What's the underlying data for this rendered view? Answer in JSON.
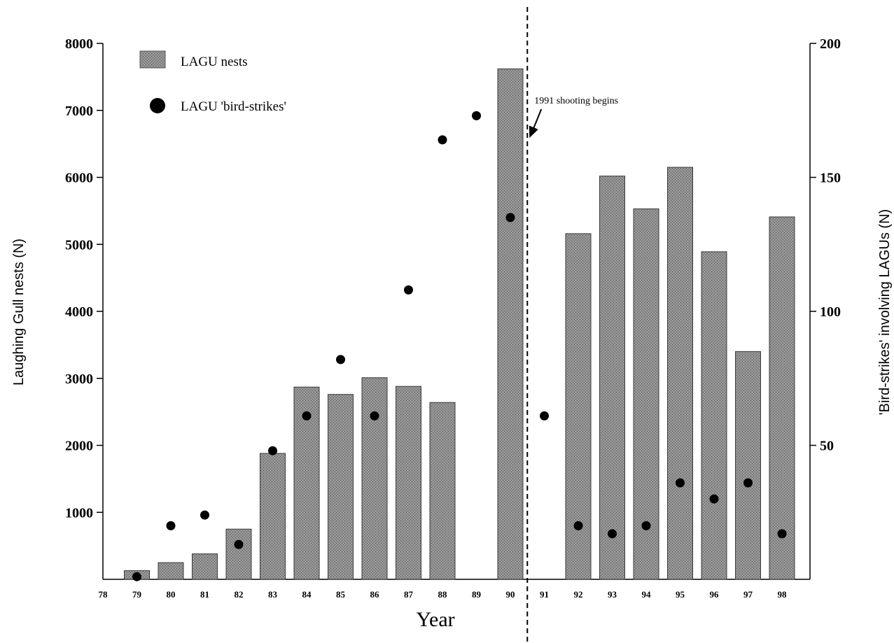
{
  "chart_data": {
    "type": "bar",
    "xlabel": "Year",
    "ylabel": "Laughing Gull nests (N)",
    "y2label": "'Bird-strikes' involving LAGUs (N)",
    "x_ticks": [
      "78",
      "79",
      "80",
      "81",
      "82",
      "83",
      "84",
      "85",
      "86",
      "87",
      "88",
      "89",
      "90",
      "91",
      "92",
      "93",
      "94",
      "95",
      "96",
      "97",
      "98"
    ],
    "ylim": [
      0,
      8000
    ],
    "y_ticks": [
      "8000",
      "7000",
      "6000",
      "5000",
      "4000",
      "3000",
      "2000",
      "1000"
    ],
    "y2lim": [
      0,
      200
    ],
    "y2_ticks": [
      "200",
      "150",
      "100",
      "50"
    ],
    "grid": false,
    "legend_position": "top-left",
    "series": [
      {
        "name": "LAGU nests",
        "type": "bar",
        "axis": "left",
        "color": "#8a8a8a",
        "x": [
          "79",
          "80",
          "81",
          "82",
          "83",
          "84",
          "85",
          "86",
          "87",
          "88",
          "90",
          "92",
          "93",
          "94",
          "95",
          "96",
          "97",
          "98"
        ],
        "values": [
          130,
          250,
          380,
          750,
          1880,
          2870,
          2760,
          3010,
          2880,
          2640,
          7620,
          5160,
          6020,
          5530,
          6150,
          4890,
          3400,
          5410
        ]
      },
      {
        "name": "LAGU 'bird-strikes'",
        "type": "scatter",
        "axis": "right",
        "color": "#000000",
        "x": [
          "79",
          "80",
          "81",
          "82",
          "83",
          "84",
          "85",
          "86",
          "87",
          "88",
          "89",
          "90",
          "91",
          "92",
          "93",
          "94",
          "95",
          "96",
          "97",
          "98"
        ],
        "values": [
          1,
          20,
          24,
          13,
          48,
          61,
          82,
          61,
          108,
          164,
          173,
          135,
          61,
          20,
          17,
          20,
          36,
          30,
          36,
          17
        ]
      }
    ],
    "annotation": {
      "text": "1991 shooting begins",
      "between": [
        "90",
        "91"
      ]
    }
  }
}
